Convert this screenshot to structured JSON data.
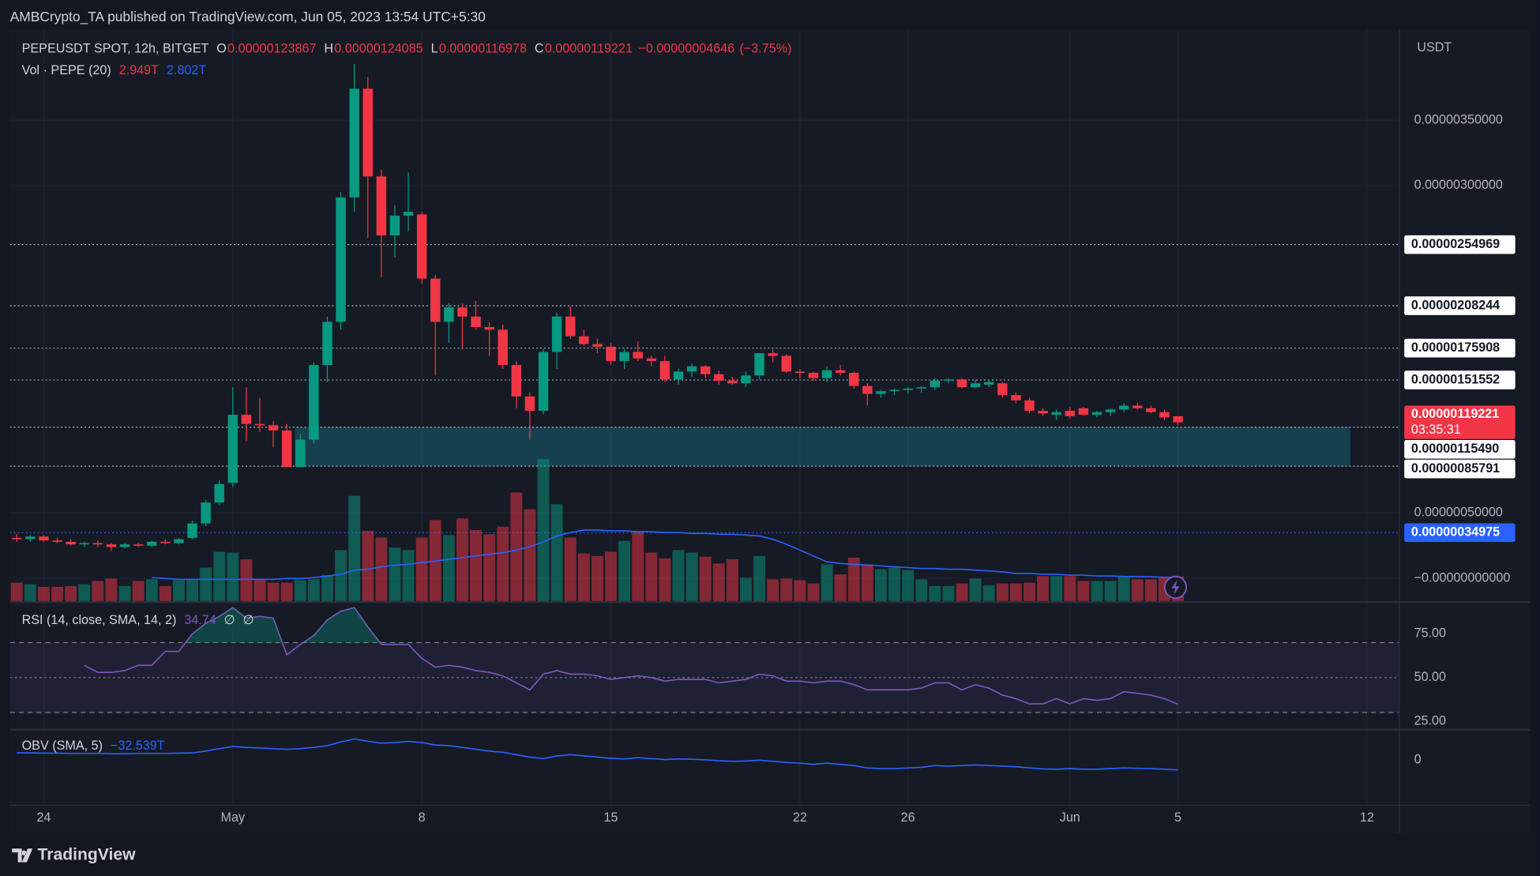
{
  "header": {
    "publisher": "AMBCrypto_TA published on TradingView.com, Jun 05, 2023 13:54 UTC+5:30"
  },
  "footer": {
    "brand": "TradingView"
  },
  "chart_data": {
    "type": "candlestick",
    "symbol": "PEPEUSDT SPOT, 12h, BITGET",
    "ohlc_prefixes": [
      "O",
      "H",
      "L",
      "C"
    ],
    "change": "−0.00000004646",
    "change_pct": "(−3.75%)",
    "currency": "USDT",
    "countdown": "03:35:31",
    "colors": {
      "up": "#089981",
      "down": "#f23645",
      "zone": "#1b8a9a",
      "level": "#d1d4dc",
      "marker": "#2962ff"
    },
    "grid": true,
    "xlim": [
      -0.5,
      102.4
    ],
    "xticks": [
      {
        "value": 2,
        "label": "24"
      },
      {
        "value": 16,
        "label": "May"
      },
      {
        "value": 30,
        "label": "8"
      },
      {
        "value": 44,
        "label": "15"
      },
      {
        "value": 58,
        "label": "22"
      },
      {
        "value": 66,
        "label": "26"
      },
      {
        "value": 78,
        "label": "Jun"
      },
      {
        "value": 86,
        "label": "5"
      },
      {
        "value": 100,
        "label": "12"
      }
    ],
    "ylim": [
      -1.725e-07,
      4.1925e-06
    ],
    "yticks": [
      {
        "value": 3.5e-06,
        "label": "0.00000350000"
      },
      {
        "value": 3e-06,
        "label": "0.00000300000"
      },
      {
        "value": 5e-07,
        "label": "0.00000050000"
      },
      {
        "value": 0,
        "label": "−0.00000000000"
      }
    ],
    "open": [
      3.1e-07,
      3e-07,
      3.2e-07,
      2.9e-07,
      2.8e-07,
      2.6e-07,
      2.7e-07,
      2.6e-07,
      2.4e-07,
      2.6e-07,
      2.5e-07,
      2.8e-07,
      2.7e-07,
      3.1e-07,
      4.2e-07,
      5.8e-07,
      7.3e-07,
      1.25e-06,
      1.18e-06,
      1.17e-06,
      1.13e-06,
      8.5e-07,
      1.06e-06,
      1.63e-06,
      1.96e-06,
      2.91e-06,
      3.74e-06,
      3.07e-06,
      2.62e-06,
      2.77e-06,
      2.78e-06,
      2.29e-06,
      1.96e-06,
      2.07e-06,
      2e-06,
      1.92e-06,
      1.9e-06,
      1.63e-06,
      1.39e-06,
      1.28e-06,
      1.73e-06,
      2e-06,
      1.85e-06,
      1.79e-06,
      1.77e-06,
      1.66e-06,
      1.73e-06,
      1.68e-06,
      1.66e-06,
      1.52e-06,
      1.58e-06,
      1.62e-06,
      1.56e-06,
      1.51e-06,
      1.49e-06,
      1.55e-06,
      1.72e-06,
      1.7e-06,
      1.58e-06,
      1.57e-06,
      1.53e-06,
      1.59e-06,
      1.57e-06,
      1.47e-06,
      1.41e-06,
      1.43e-06,
      1.44e-06,
      1.45e-06,
      1.46e-06,
      1.51e-06,
      1.52e-06,
      1.46e-06,
      1.48e-06,
      1.49e-06,
      1.4e-06,
      1.36e-06,
      1.28e-06,
      1.25e-06,
      1.28e-06,
      1.3e-06,
      1.25e-06,
      1.27e-06,
      1.29e-06,
      1.32e-06,
      1.3e-06,
      1.27e-06,
      1.23867e-06
    ],
    "high": [
      3.4e-07,
      3.3e-07,
      3.3e-07,
      3.1e-07,
      3e-07,
      2.8e-07,
      2.9e-07,
      2.7e-07,
      2.7e-07,
      2.7e-07,
      2.9e-07,
      3e-07,
      3.1e-07,
      4.4e-07,
      6e-07,
      7.5e-07,
      1.46e-06,
      1.46e-06,
      1.38e-06,
      1.2e-06,
      1.18e-06,
      1.1e-06,
      1.65e-06,
      2e-06,
      2.95e-06,
      3.93e-06,
      3.83e-06,
      3.12e-06,
      2.85e-06,
      3.1e-06,
      2.8e-06,
      2.32e-06,
      2.1e-06,
      2.1e-06,
      2.12e-06,
      1.96e-06,
      1.94e-06,
      1.66e-06,
      1.42e-06,
      1.75e-06,
      2.03e-06,
      2.08e-06,
      1.9e-06,
      1.83e-06,
      1.8e-06,
      1.75e-06,
      1.81e-06,
      1.7e-06,
      1.7e-06,
      1.6e-06,
      1.64e-06,
      1.63e-06,
      1.59e-06,
      1.54e-06,
      1.58e-06,
      1.72e-06,
      1.75e-06,
      1.71e-06,
      1.6e-06,
      1.58e-06,
      1.62e-06,
      1.63e-06,
      1.58e-06,
      1.49e-06,
      1.44e-06,
      1.45e-06,
      1.46e-06,
      1.47e-06,
      1.53e-06,
      1.53e-06,
      1.53e-06,
      1.52e-06,
      1.51e-06,
      1.5e-06,
      1.42e-06,
      1.38e-06,
      1.3e-06,
      1.29e-06,
      1.31e-06,
      1.31e-06,
      1.28e-06,
      1.3e-06,
      1.34e-06,
      1.34e-06,
      1.32e-06,
      1.29e-06,
      1.24085e-06
    ],
    "low": [
      2.8e-07,
      2.8e-07,
      2.8e-07,
      2.7e-07,
      2.5e-07,
      2.4e-07,
      2.4e-07,
      2.1e-07,
      2.3e-07,
      2.4e-07,
      2.4e-07,
      2.6e-07,
      2.6e-07,
      3e-07,
      4e-07,
      5.6e-07,
      7e-07,
      1.05e-06,
      1.12e-06,
      1e-06,
      8.5e-07,
      8.5e-07,
      1.03e-06,
      1.5e-06,
      1.9e-06,
      2.8e-06,
      2.6e-06,
      2.3e-06,
      2.45e-06,
      2.65e-06,
      2.25e-06,
      1.55e-06,
      1.8e-06,
      1.75e-06,
      1.9e-06,
      1.7e-06,
      1.6e-06,
      1.3e-06,
      1.06e-06,
      1.25e-06,
      1.6e-06,
      1.83e-06,
      1.78e-06,
      1.72e-06,
      1.63e-06,
      1.6e-06,
      1.66e-06,
      1.62e-06,
      1.5e-06,
      1.48e-06,
      1.54e-06,
      1.53e-06,
      1.48e-06,
      1.48e-06,
      1.46e-06,
      1.52e-06,
      1.65e-06,
      1.57e-06,
      1.53e-06,
      1.51e-06,
      1.5e-06,
      1.55e-06,
      1.45e-06,
      1.32e-06,
      1.38e-06,
      1.4e-06,
      1.41e-06,
      1.42e-06,
      1.44e-06,
      1.49e-06,
      1.45e-06,
      1.45e-06,
      1.46e-06,
      1.38e-06,
      1.34e-06,
      1.26e-06,
      1.24e-06,
      1.21e-06,
      1.22e-06,
      1.24e-06,
      1.23e-06,
      1.24e-06,
      1.27e-06,
      1.29e-06,
      1.26e-06,
      1.21e-06,
      1.16978e-06
    ],
    "close": [
      3e-07,
      3.2e-07,
      2.9e-07,
      2.8e-07,
      2.6e-07,
      2.7e-07,
      2.6e-07,
      2.4e-07,
      2.6e-07,
      2.5e-07,
      2.8e-07,
      2.7e-07,
      3e-07,
      4.2e-07,
      5.8e-07,
      7.2e-07,
      1.25e-06,
      1.18e-06,
      1.17e-06,
      1.13e-06,
      8.5e-07,
      1.06e-06,
      1.63e-06,
      1.96e-06,
      2.91e-06,
      3.74e-06,
      3.07e-06,
      2.62e-06,
      2.77e-06,
      2.8e-06,
      2.29e-06,
      1.96e-06,
      2.07e-06,
      2e-06,
      1.92e-06,
      1.9e-06,
      1.63e-06,
      1.39e-06,
      1.28e-06,
      1.73e-06,
      2e-06,
      1.85e-06,
      1.79e-06,
      1.77e-06,
      1.66e-06,
      1.73e-06,
      1.68e-06,
      1.66e-06,
      1.52e-06,
      1.58e-06,
      1.62e-06,
      1.56e-06,
      1.51e-06,
      1.49e-06,
      1.55e-06,
      1.72e-06,
      1.7e-06,
      1.58e-06,
      1.57e-06,
      1.53e-06,
      1.59e-06,
      1.57e-06,
      1.47e-06,
      1.41e-06,
      1.43e-06,
      1.44e-06,
      1.45e-06,
      1.46e-06,
      1.51e-06,
      1.52e-06,
      1.46e-06,
      1.49e-06,
      1.5e-06,
      1.4e-06,
      1.36e-06,
      1.28e-06,
      1.26e-06,
      1.27e-06,
      1.24e-06,
      1.25e-06,
      1.27e-06,
      1.29e-06,
      1.32e-06,
      1.3e-06,
      1.27e-06,
      1.23e-06,
      1.19221e-06
    ],
    "levels": [
      {
        "value": 2.54969e-06,
        "label": "0.00000254969"
      },
      {
        "value": 2.08244e-06,
        "label": "0.00000208244"
      },
      {
        "value": 1.75908e-06,
        "label": "0.00000175908"
      },
      {
        "value": 1.51552e-06,
        "label": "0.00000151552"
      },
      {
        "value": 1.1549e-06,
        "label": "0.00000115490"
      },
      {
        "value": 8.5791e-07,
        "label": "0.00000085791"
      }
    ],
    "marker_level": {
      "value": 3.4975e-07,
      "label": "0.00000034975"
    },
    "volume": {
      "name": "Vol · PEPE (20)",
      "ylim": [
        0,
        20
      ],
      "values": [
        2.2,
        2.0,
        1.7,
        1.7,
        1.8,
        2.0,
        2.4,
        2.7,
        1.8,
        2.4,
        2.6,
        1.8,
        2.5,
        2.6,
        4.0,
        5.9,
        5.8,
        5.0,
        2.6,
        2.2,
        2.2,
        2.5,
        2.6,
        3.1,
        6.1,
        12.6,
        8.4,
        7.6,
        6.4,
        6.1,
        7.6,
        9.7,
        7.9,
        9.9,
        8.5,
        8.0,
        8.9,
        13.0,
        11.0,
        17.0,
        11.6,
        7.6,
        5.7,
        5.4,
        5.9,
        7.2,
        8.4,
        5.8,
        5.1,
        6.1,
        5.8,
        5.3,
        4.5,
        5.0,
        2.8,
        5.4,
        2.6,
        2.7,
        2.5,
        2.1,
        4.4,
        3.2,
        5.2,
        4.4,
        3.8,
        4.0,
        3.7,
        2.6,
        1.8,
        1.8,
        2.1,
        2.7,
        1.9,
        2.1,
        2.1,
        2.2,
        3.0,
        3.0,
        3.0,
        2.4,
        2.4,
        2.4,
        3.0,
        2.6,
        2.6,
        2.8,
        2.949
      ],
      "value_labels": [
        null,
        null,
        null,
        null,
        null,
        null,
        null,
        null,
        null,
        null,
        null,
        null,
        null,
        null,
        null,
        null,
        null,
        null,
        null,
        null,
        null,
        null,
        null,
        null,
        null,
        null,
        null,
        null,
        null,
        null,
        null,
        null,
        null,
        null,
        null,
        null,
        null,
        null,
        null,
        null,
        null,
        null,
        null,
        null,
        null,
        null,
        null,
        null,
        null,
        null,
        null,
        null,
        null,
        null,
        null,
        null,
        null,
        null,
        null,
        null,
        null,
        null,
        null,
        null,
        null,
        null,
        null,
        null,
        null,
        null,
        null,
        null,
        null,
        null,
        null,
        null,
        null,
        null,
        null,
        null,
        null,
        null,
        null,
        null,
        null,
        null,
        "2.949T"
      ],
      "ma": {
        "color": "#2962ff",
        "values": [
          null,
          null,
          null,
          null,
          null,
          null,
          null,
          null,
          null,
          null,
          2.8,
          2.7,
          2.6,
          2.6,
          2.6,
          2.6,
          2.6,
          2.6,
          2.6,
          2.6,
          2.7,
          2.7,
          2.8,
          3.0,
          3.2,
          3.7,
          3.8,
          4.1,
          4.3,
          4.4,
          4.6,
          4.8,
          5.0,
          5.2,
          5.4,
          5.6,
          5.8,
          6.1,
          6.5,
          7.1,
          7.8,
          8.2,
          8.5,
          8.5,
          8.4,
          8.4,
          8.3,
          8.3,
          8.2,
          8.2,
          8.1,
          8.1,
          8.0,
          8.0,
          7.9,
          7.8,
          7.4,
          6.8,
          6.1,
          5.4,
          4.7,
          4.5,
          4.4,
          4.3,
          4.2,
          4.1,
          4.0,
          3.9,
          3.9,
          3.8,
          3.8,
          3.7,
          3.6,
          3.5,
          3.3,
          3.3,
          3.2,
          3.2,
          3.1,
          3.1,
          3.0,
          3.0,
          2.95,
          2.9,
          2.9,
          2.85,
          2.802
        ],
        "value_labels": [
          null,
          null,
          null,
          null,
          null,
          null,
          null,
          null,
          null,
          null,
          null,
          null,
          null,
          null,
          null,
          null,
          null,
          null,
          null,
          null,
          null,
          null,
          null,
          null,
          null,
          null,
          null,
          null,
          null,
          null,
          null,
          null,
          null,
          null,
          null,
          null,
          null,
          null,
          null,
          null,
          null,
          null,
          null,
          null,
          null,
          null,
          null,
          null,
          null,
          null,
          null,
          null,
          null,
          null,
          null,
          null,
          null,
          null,
          null,
          null,
          null,
          null,
          null,
          null,
          null,
          null,
          null,
          null,
          null,
          null,
          null,
          null,
          null,
          null,
          null,
          null,
          null,
          null,
          null,
          null,
          null,
          null,
          null,
          null,
          null,
          null,
          "2.802T"
        ]
      }
    },
    "rsi": {
      "name": "RSI (14, close, SMA, 14, 2)",
      "na_labels": [
        "∅",
        "∅"
      ],
      "color": "#7e57c2",
      "ylim": [
        20.8,
        92.1
      ],
      "yticks": [
        {
          "value": 75,
          "label": "75.00"
        },
        {
          "value": 50,
          "label": "50.00"
        },
        {
          "value": 25,
          "label": "25.00"
        }
      ],
      "bands": [
        30,
        50,
        70
      ],
      "values": [
        null,
        null,
        null,
        null,
        null,
        57,
        53,
        53,
        54,
        57,
        57,
        65,
        65,
        75,
        81,
        85,
        90,
        84,
        85,
        84,
        63,
        69,
        74,
        83,
        88,
        90,
        79,
        69,
        69,
        69,
        61,
        56,
        57,
        56,
        54,
        53,
        51,
        47,
        43,
        52,
        54,
        52,
        52,
        51,
        49,
        50,
        51,
        50,
        48,
        49,
        49,
        49,
        47,
        48,
        49,
        52,
        51,
        48,
        48,
        47,
        48,
        48,
        46,
        43,
        43,
        43,
        43,
        44,
        47,
        47,
        43,
        46,
        44,
        40,
        38,
        35,
        35,
        38,
        35,
        38,
        37,
        38,
        42,
        41,
        40,
        38,
        34.74
      ]
    },
    "obv": {
      "name": "OBV (SMA, 5)",
      "color": "#2962ff",
      "ylim": [
        -143,
        97.5
      ],
      "yticks": [
        0
      ],
      "values": [
        24,
        24,
        23,
        23,
        22,
        22,
        22,
        21,
        21,
        22,
        22,
        22,
        23,
        24,
        30,
        38,
        45,
        42,
        40,
        38,
        36,
        38,
        42,
        48,
        60,
        70,
        62,
        56,
        58,
        62,
        58,
        50,
        48,
        42,
        36,
        30,
        26,
        18,
        10,
        5,
        14,
        18,
        14,
        10,
        6,
        4,
        8,
        5,
        2,
        4,
        3,
        1,
        -2,
        -4,
        -3,
        0,
        -4,
        -8,
        -10,
        -14,
        -10,
        -14,
        -18,
        -26,
        -28,
        -28,
        -26,
        -24,
        -18,
        -20,
        -18,
        -16,
        -18,
        -20,
        -22,
        -26,
        -29,
        -30,
        -28,
        -30,
        -30,
        -28,
        -26,
        -27,
        -28,
        -30,
        -32.539
      ],
      "value_labels": [
        null,
        null,
        null,
        null,
        null,
        null,
        null,
        null,
        null,
        null,
        null,
        null,
        null,
        null,
        null,
        null,
        null,
        null,
        null,
        null,
        null,
        null,
        null,
        null,
        null,
        null,
        null,
        null,
        null,
        null,
        null,
        null,
        null,
        null,
        null,
        null,
        null,
        null,
        null,
        null,
        null,
        null,
        null,
        null,
        null,
        null,
        null,
        null,
        null,
        null,
        null,
        null,
        null,
        null,
        null,
        null,
        null,
        null,
        null,
        null,
        null,
        null,
        null,
        null,
        null,
        null,
        null,
        null,
        null,
        null,
        null,
        null,
        null,
        null,
        null,
        null,
        null,
        null,
        null,
        null,
        null,
        null,
        null,
        null,
        null,
        null,
        "−32.539T"
      ]
    }
  }
}
